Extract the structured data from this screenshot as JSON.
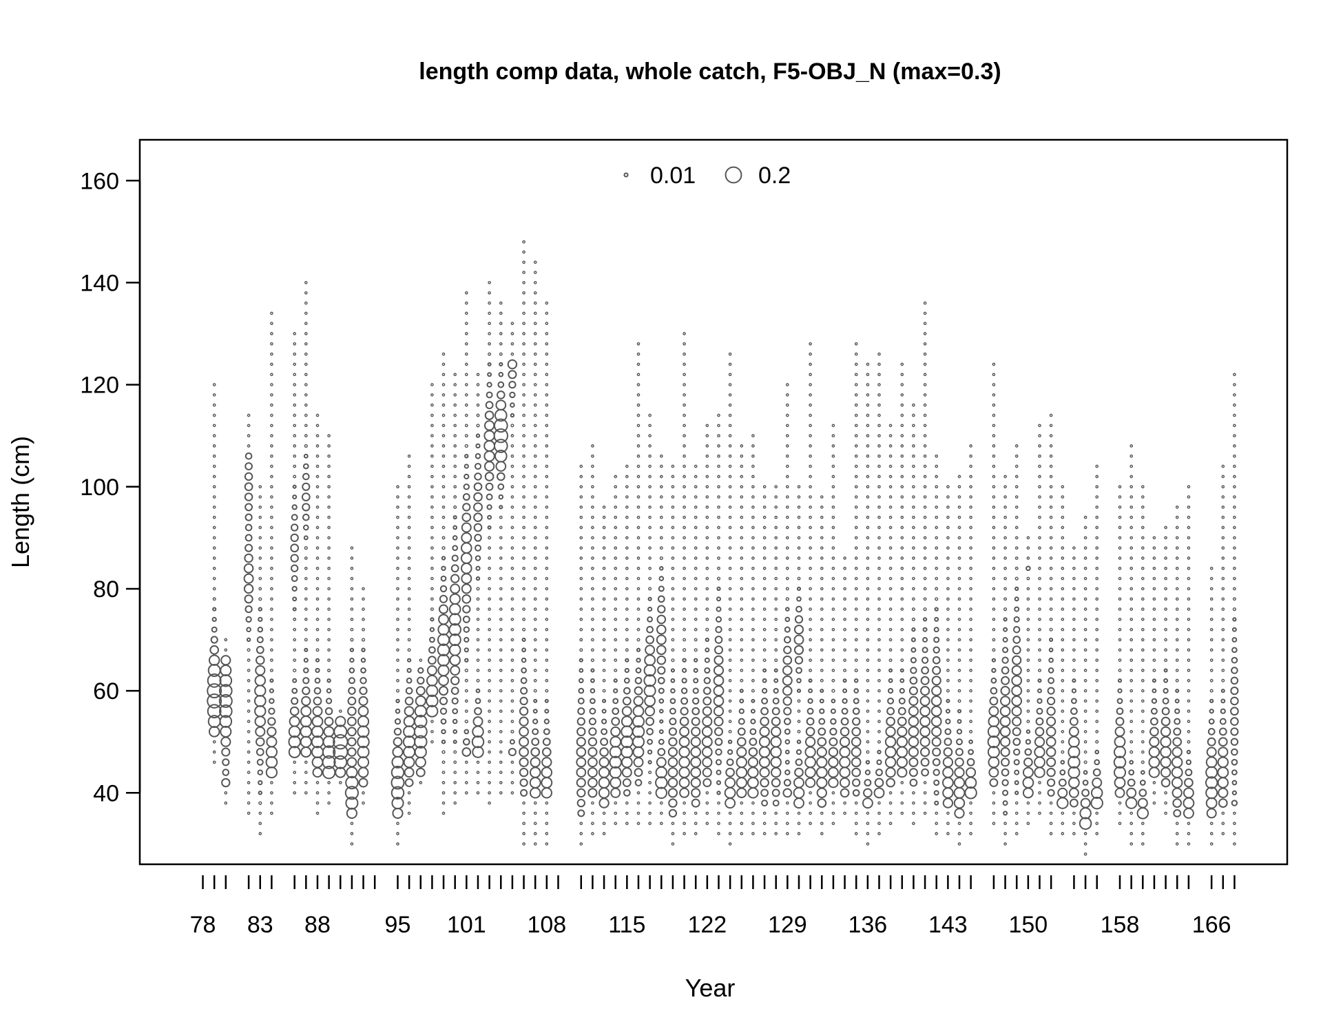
{
  "chart_data": {
    "type": "bubble",
    "title": "length comp data, whole catch, F5-OBJ_N (max=0.3)",
    "xlabel": "Year",
    "ylabel": "Length (cm)",
    "ylim": [
      26,
      168
    ],
    "y_ticks": [
      40,
      60,
      80,
      100,
      120,
      140,
      160
    ],
    "x_tick_labels": [
      "78",
      "83",
      "88",
      "95",
      "101",
      "108",
      "115",
      "122",
      "129",
      "136",
      "143",
      "150",
      "158",
      "166"
    ],
    "x_minor_ticks": [
      78,
      79,
      80,
      82,
      83,
      84,
      86,
      87,
      88,
      89,
      90,
      91,
      92,
      93,
      95,
      96,
      97,
      98,
      99,
      100,
      101,
      102,
      103,
      104,
      105,
      106,
      107,
      108,
      109,
      111,
      112,
      113,
      114,
      115,
      116,
      117,
      118,
      119,
      120,
      121,
      122,
      123,
      124,
      125,
      126,
      127,
      128,
      129,
      130,
      131,
      132,
      133,
      134,
      135,
      136,
      137,
      138,
      139,
      140,
      141,
      142,
      143,
      144,
      145,
      147,
      148,
      149,
      150,
      151,
      152,
      154,
      155,
      156,
      158,
      159,
      160,
      161,
      162,
      163,
      164,
      166,
      167,
      168
    ],
    "bin_width_cm": 2,
    "max_proportion": 0.3,
    "legend": {
      "position": "top",
      "entries": [
        {
          "label": "0.01",
          "value": 0.01
        },
        {
          "label": "0.2",
          "value": 0.2
        }
      ]
    },
    "symbol": "open-circle",
    "marker_color": "#555555",
    "columns": [
      {
        "year": 79,
        "min": 46,
        "max": 120,
        "modes": [
          {
            "at": 59,
            "w": 6,
            "p": 0.15
          }
        ]
      },
      {
        "year": 80,
        "min": 38,
        "max": 70,
        "modes": [
          {
            "at": 58,
            "w": 7,
            "p": 0.12
          },
          {
            "at": 40,
            "w": 2,
            "p": 0.06
          }
        ]
      },
      {
        "year": 82,
        "min": 36,
        "max": 114,
        "modes": [
          {
            "at": 82,
            "w": 5,
            "p": 0.06
          },
          {
            "at": 100,
            "w": 6,
            "p": 0.04
          }
        ]
      },
      {
        "year": 83,
        "min": 32,
        "max": 100,
        "modes": [
          {
            "at": 58,
            "w": 7,
            "p": 0.09
          }
        ]
      },
      {
        "year": 84,
        "min": 36,
        "max": 134,
        "modes": [
          {
            "at": 46,
            "w": 6,
            "p": 0.09
          }
        ]
      },
      {
        "year": 86,
        "min": 40,
        "max": 130,
        "modes": [
          {
            "at": 50,
            "w": 5,
            "p": 0.1
          },
          {
            "at": 88,
            "w": 5,
            "p": 0.04
          }
        ]
      },
      {
        "year": 87,
        "min": 40,
        "max": 140,
        "modes": [
          {
            "at": 52,
            "w": 6,
            "p": 0.09
          },
          {
            "at": 98,
            "w": 4,
            "p": 0.04
          }
        ]
      },
      {
        "year": 88,
        "min": 36,
        "max": 114,
        "modes": [
          {
            "at": 50,
            "w": 6,
            "p": 0.1
          }
        ]
      },
      {
        "year": 89,
        "min": 38,
        "max": 110,
        "modes": [
          {
            "at": 46,
            "w": 6,
            "p": 0.12
          }
        ]
      },
      {
        "year": 90,
        "min": 42,
        "max": 56,
        "modes": [
          {
            "at": 49,
            "w": 4,
            "p": 0.16
          }
        ]
      },
      {
        "year": 91,
        "min": 30,
        "max": 88,
        "modes": [
          {
            "at": 40,
            "w": 4,
            "p": 0.12
          },
          {
            "at": 54,
            "w": 6,
            "p": 0.05
          }
        ]
      },
      {
        "year": 92,
        "min": 38,
        "max": 80,
        "modes": [
          {
            "at": 50,
            "w": 7,
            "p": 0.1
          }
        ]
      },
      {
        "year": 95,
        "min": 30,
        "max": 100,
        "modes": [
          {
            "at": 42,
            "w": 6,
            "p": 0.12
          }
        ]
      },
      {
        "year": 96,
        "min": 36,
        "max": 106,
        "modes": [
          {
            "at": 50,
            "w": 6,
            "p": 0.1
          }
        ]
      },
      {
        "year": 97,
        "min": 42,
        "max": 66,
        "modes": [
          {
            "at": 52,
            "w": 6,
            "p": 0.12
          }
        ]
      },
      {
        "year": 98,
        "min": 50,
        "max": 120,
        "modes": [
          {
            "at": 58,
            "w": 6,
            "p": 0.1
          }
        ]
      },
      {
        "year": 99,
        "min": 36,
        "max": 126,
        "modes": [
          {
            "at": 68,
            "w": 7,
            "p": 0.1
          }
        ]
      },
      {
        "year": 100,
        "min": 38,
        "max": 122,
        "modes": [
          {
            "at": 72,
            "w": 8,
            "p": 0.1
          }
        ]
      },
      {
        "year": 101,
        "min": 40,
        "max": 138,
        "modes": [
          {
            "at": 86,
            "w": 8,
            "p": 0.08
          },
          {
            "at": 46,
            "w": 3,
            "p": 0.06
          }
        ]
      },
      {
        "year": 102,
        "min": 40,
        "max": 122,
        "modes": [
          {
            "at": 50,
            "w": 4,
            "p": 0.1
          },
          {
            "at": 96,
            "w": 6,
            "p": 0.05
          }
        ]
      },
      {
        "year": 103,
        "min": 38,
        "max": 140,
        "modes": [
          {
            "at": 108,
            "w": 6,
            "p": 0.08
          }
        ]
      },
      {
        "year": 104,
        "min": 40,
        "max": 136,
        "modes": [
          {
            "at": 110,
            "w": 5,
            "p": 0.14
          }
        ]
      },
      {
        "year": 105,
        "min": 40,
        "max": 132,
        "modes": [
          {
            "at": 43,
            "w": 3,
            "p": 0.14
          },
          {
            "at": 126,
            "w": 5,
            "p": 0.06
          }
        ]
      },
      {
        "year": 106,
        "min": 30,
        "max": 148,
        "modes": [
          {
            "at": 50,
            "w": 8,
            "p": 0.06
          }
        ]
      },
      {
        "year": 107,
        "min": 30,
        "max": 144,
        "modes": [
          {
            "at": 42,
            "w": 6,
            "p": 0.08
          }
        ]
      },
      {
        "year": 108,
        "min": 30,
        "max": 136,
        "modes": [
          {
            "at": 42,
            "w": 6,
            "p": 0.08
          }
        ]
      },
      {
        "year": 111,
        "min": 30,
        "max": 104,
        "modes": [
          {
            "at": 46,
            "w": 8,
            "p": 0.06
          }
        ]
      },
      {
        "year": 112,
        "min": 32,
        "max": 108,
        "modes": [
          {
            "at": 44,
            "w": 8,
            "p": 0.06
          }
        ]
      },
      {
        "year": 113,
        "min": 32,
        "max": 96,
        "modes": [
          {
            "at": 42,
            "w": 6,
            "p": 0.08
          }
        ]
      },
      {
        "year": 114,
        "min": 34,
        "max": 102,
        "modes": [
          {
            "at": 46,
            "w": 6,
            "p": 0.1
          }
        ]
      },
      {
        "year": 115,
        "min": 34,
        "max": 104,
        "modes": [
          {
            "at": 50,
            "w": 6,
            "p": 0.1
          }
        ]
      },
      {
        "year": 116,
        "min": 34,
        "max": 128,
        "modes": [
          {
            "at": 52,
            "w": 6,
            "p": 0.1
          }
        ]
      },
      {
        "year": 117,
        "min": 34,
        "max": 114,
        "modes": [
          {
            "at": 62,
            "w": 6,
            "p": 0.1
          }
        ]
      },
      {
        "year": 118,
        "min": 34,
        "max": 106,
        "modes": [
          {
            "at": 42,
            "w": 4,
            "p": 0.1
          },
          {
            "at": 70,
            "w": 6,
            "p": 0.06
          }
        ]
      },
      {
        "year": 119,
        "min": 30,
        "max": 104,
        "modes": [
          {
            "at": 44,
            "w": 8,
            "p": 0.06
          }
        ]
      },
      {
        "year": 120,
        "min": 32,
        "max": 130,
        "modes": [
          {
            "at": 46,
            "w": 8,
            "p": 0.08
          }
        ]
      },
      {
        "year": 121,
        "min": 32,
        "max": 104,
        "modes": [
          {
            "at": 46,
            "w": 8,
            "p": 0.07
          }
        ]
      },
      {
        "year": 122,
        "min": 34,
        "max": 112,
        "modes": [
          {
            "at": 50,
            "w": 8,
            "p": 0.07
          }
        ]
      },
      {
        "year": 123,
        "min": 32,
        "max": 114,
        "modes": [
          {
            "at": 60,
            "w": 8,
            "p": 0.07
          }
        ]
      },
      {
        "year": 124,
        "min": 30,
        "max": 126,
        "modes": [
          {
            "at": 40,
            "w": 4,
            "p": 0.08
          }
        ]
      },
      {
        "year": 125,
        "min": 32,
        "max": 108,
        "modes": [
          {
            "at": 44,
            "w": 6,
            "p": 0.08
          }
        ]
      },
      {
        "year": 126,
        "min": 32,
        "max": 110,
        "modes": [
          {
            "at": 42,
            "w": 6,
            "p": 0.08
          }
        ]
      },
      {
        "year": 127,
        "min": 32,
        "max": 100,
        "modes": [
          {
            "at": 48,
            "w": 6,
            "p": 0.08
          }
        ]
      },
      {
        "year": 128,
        "min": 32,
        "max": 100,
        "modes": [
          {
            "at": 48,
            "w": 6,
            "p": 0.08
          }
        ]
      },
      {
        "year": 129,
        "min": 32,
        "max": 120,
        "modes": [
          {
            "at": 36,
            "w": 4,
            "p": 0.08
          },
          {
            "at": 62,
            "w": 6,
            "p": 0.06
          }
        ]
      },
      {
        "year": 130,
        "min": 32,
        "max": 100,
        "modes": [
          {
            "at": 40,
            "w": 4,
            "p": 0.08
          },
          {
            "at": 70,
            "w": 4,
            "p": 0.06
          }
        ]
      },
      {
        "year": 131,
        "min": 34,
        "max": 128,
        "modes": [
          {
            "at": 46,
            "w": 6,
            "p": 0.08
          }
        ]
      },
      {
        "year": 132,
        "min": 32,
        "max": 98,
        "modes": [
          {
            "at": 44,
            "w": 6,
            "p": 0.08
          }
        ]
      },
      {
        "year": 133,
        "min": 34,
        "max": 112,
        "modes": [
          {
            "at": 44,
            "w": 6,
            "p": 0.07
          }
        ]
      },
      {
        "year": 134,
        "min": 36,
        "max": 86,
        "modes": [
          {
            "at": 46,
            "w": 6,
            "p": 0.08
          }
        ]
      },
      {
        "year": 135,
        "min": 32,
        "max": 128,
        "modes": [
          {
            "at": 48,
            "w": 6,
            "p": 0.06
          }
        ]
      },
      {
        "year": 136,
        "min": 30,
        "max": 124,
        "modes": [
          {
            "at": 36,
            "w": 4,
            "p": 0.08
          }
        ]
      },
      {
        "year": 137,
        "min": 32,
        "max": 126,
        "modes": [
          {
            "at": 38,
            "w": 4,
            "p": 0.08
          }
        ]
      },
      {
        "year": 138,
        "min": 34,
        "max": 112,
        "modes": [
          {
            "at": 48,
            "w": 6,
            "p": 0.08
          }
        ]
      },
      {
        "year": 139,
        "min": 36,
        "max": 124,
        "modes": [
          {
            "at": 48,
            "w": 6,
            "p": 0.08
          }
        ]
      },
      {
        "year": 140,
        "min": 34,
        "max": 116,
        "modes": [
          {
            "at": 52,
            "w": 8,
            "p": 0.07
          }
        ]
      },
      {
        "year": 141,
        "min": 36,
        "max": 136,
        "modes": [
          {
            "at": 54,
            "w": 8,
            "p": 0.07
          }
        ]
      },
      {
        "year": 142,
        "min": 32,
        "max": 106,
        "modes": [
          {
            "at": 56,
            "w": 8,
            "p": 0.07
          }
        ]
      },
      {
        "year": 143,
        "min": 32,
        "max": 100,
        "modes": [
          {
            "at": 42,
            "w": 6,
            "p": 0.08
          }
        ]
      },
      {
        "year": 144,
        "min": 30,
        "max": 102,
        "modes": [
          {
            "at": 40,
            "w": 6,
            "p": 0.08
          }
        ]
      },
      {
        "year": 145,
        "min": 32,
        "max": 108,
        "modes": [
          {
            "at": 40,
            "w": 4,
            "p": 0.1
          }
        ]
      },
      {
        "year": 147,
        "min": 34,
        "max": 124,
        "modes": [
          {
            "at": 50,
            "w": 6,
            "p": 0.1
          }
        ]
      },
      {
        "year": 148,
        "min": 30,
        "max": 102,
        "modes": [
          {
            "at": 54,
            "w": 8,
            "p": 0.07
          }
        ]
      },
      {
        "year": 149,
        "min": 32,
        "max": 108,
        "modes": [
          {
            "at": 60,
            "w": 8,
            "p": 0.07
          }
        ]
      },
      {
        "year": 150,
        "min": 34,
        "max": 90,
        "modes": [
          {
            "at": 42,
            "w": 4,
            "p": 0.08
          },
          {
            "at": 88,
            "w": 2,
            "p": 0.06
          }
        ]
      },
      {
        "year": 151,
        "min": 36,
        "max": 112,
        "modes": [
          {
            "at": 46,
            "w": 6,
            "p": 0.08
          }
        ]
      },
      {
        "year": 152,
        "min": 32,
        "max": 114,
        "modes": [
          {
            "at": 50,
            "w": 8,
            "p": 0.06
          }
        ]
      },
      {
        "year": 153,
        "min": 32,
        "max": 100,
        "modes": [
          {
            "at": 36,
            "w": 4,
            "p": 0.1
          }
        ]
      },
      {
        "year": 154,
        "min": 32,
        "max": 88,
        "modes": [
          {
            "at": 46,
            "w": 6,
            "p": 0.1
          }
        ]
      },
      {
        "year": 155,
        "min": 28,
        "max": 94,
        "modes": [
          {
            "at": 34,
            "w": 4,
            "p": 0.1
          }
        ]
      },
      {
        "year": 156,
        "min": 32,
        "max": 104,
        "modes": [
          {
            "at": 38,
            "w": 4,
            "p": 0.1
          }
        ]
      },
      {
        "year": 158,
        "min": 34,
        "max": 100,
        "modes": [
          {
            "at": 46,
            "w": 6,
            "p": 0.1
          }
        ]
      },
      {
        "year": 159,
        "min": 30,
        "max": 108,
        "modes": [
          {
            "at": 36,
            "w": 4,
            "p": 0.1
          }
        ]
      },
      {
        "year": 160,
        "min": 30,
        "max": 100,
        "modes": [
          {
            "at": 34,
            "w": 4,
            "p": 0.1
          }
        ]
      },
      {
        "year": 161,
        "min": 38,
        "max": 90,
        "modes": [
          {
            "at": 46,
            "w": 6,
            "p": 0.08
          }
        ]
      },
      {
        "year": 162,
        "min": 36,
        "max": 92,
        "modes": [
          {
            "at": 48,
            "w": 6,
            "p": 0.08
          }
        ]
      },
      {
        "year": 163,
        "min": 30,
        "max": 96,
        "modes": [
          {
            "at": 44,
            "w": 6,
            "p": 0.08
          }
        ]
      },
      {
        "year": 164,
        "min": 30,
        "max": 100,
        "modes": [
          {
            "at": 38,
            "w": 4,
            "p": 0.08
          }
        ]
      },
      {
        "year": 166,
        "min": 30,
        "max": 84,
        "modes": [
          {
            "at": 42,
            "w": 6,
            "p": 0.1
          }
        ]
      },
      {
        "year": 167,
        "min": 32,
        "max": 104,
        "modes": [
          {
            "at": 44,
            "w": 6,
            "p": 0.08
          }
        ]
      },
      {
        "year": 168,
        "min": 30,
        "max": 122,
        "modes": [
          {
            "at": 34,
            "w": 2,
            "p": 0.1
          },
          {
            "at": 56,
            "w": 8,
            "p": 0.04
          }
        ]
      }
    ]
  }
}
